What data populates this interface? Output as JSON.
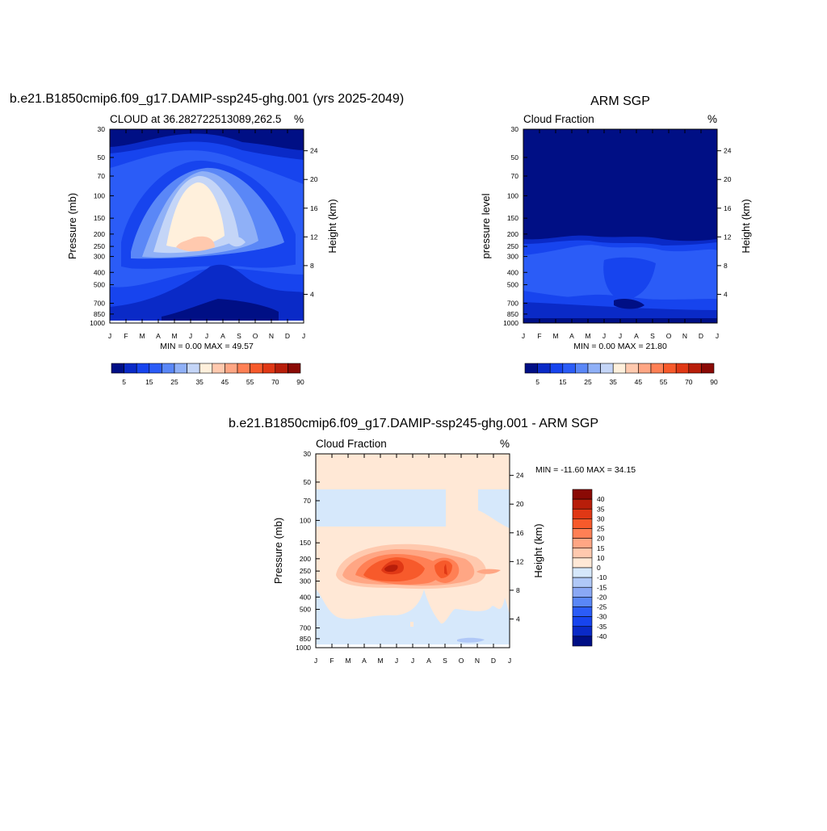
{
  "colors": {
    "frame": "#000000",
    "panel_top_background": "#000f85",
    "diff_background": "#ffe8d6"
  },
  "chart_data": [
    {
      "type": "heatmap",
      "title": "b.e21.B1850cmip6.f09_g17.DAMIP-ssp245-ghg.001 (yrs 2025-2049)",
      "left_string": "CLOUD at 36.282722513089,262.5",
      "right_string": "%",
      "ylabel": "Pressure (mb)",
      "ylabel_right": "Height (km)",
      "x_ticks": [
        "J",
        "F",
        "M",
        "A",
        "M",
        "J",
        "J",
        "A",
        "S",
        "O",
        "N",
        "D",
        "J"
      ],
      "y_ticks": [
        30,
        50,
        70,
        100,
        150,
        200,
        250,
        300,
        400,
        500,
        700,
        850,
        1000
      ],
      "y_right_ticks": [
        24,
        20,
        16,
        12,
        8,
        4
      ],
      "y_scale": "log",
      "ylim": [
        30,
        1000
      ],
      "stats": "MIN =   0.00 MAX =  49.57",
      "colorbar_labels": [
        "5",
        "15",
        "25",
        "35",
        "45",
        "55",
        "70",
        "90"
      ],
      "colorbar_colors": [
        "#000f85",
        "#0a2ac7",
        "#1744ee",
        "#2b5cf7",
        "#5a87f7",
        "#8fb0f7",
        "#c4d5f7",
        "#fff0dc",
        "#ffc9ae",
        "#ffa684",
        "#ff8055",
        "#f75a2b",
        "#e03815",
        "#b81e0a",
        "#8a0a05"
      ],
      "colorbar_placement": "bottom"
    },
    {
      "type": "heatmap",
      "title": "ARM SGP",
      "left_string": "Cloud Fraction",
      "right_string": "%",
      "ylabel": "pressure level",
      "ylabel_right": "Height (km)",
      "x_ticks": [
        "J",
        "F",
        "M",
        "A",
        "M",
        "J",
        "J",
        "A",
        "S",
        "O",
        "N",
        "D",
        "J"
      ],
      "y_ticks": [
        30,
        50,
        70,
        100,
        150,
        200,
        250,
        300,
        400,
        500,
        700,
        850,
        1000
      ],
      "y_right_ticks": [
        24,
        20,
        16,
        12,
        8,
        4
      ],
      "y_scale": "log",
      "ylim": [
        30,
        1000
      ],
      "stats": "MIN =   0.00 MAX =  21.80",
      "colorbar_labels": [
        "5",
        "15",
        "25",
        "35",
        "45",
        "55",
        "70",
        "90"
      ],
      "colorbar_colors": [
        "#000f85",
        "#0a2ac7",
        "#1744ee",
        "#2b5cf7",
        "#5a87f7",
        "#8fb0f7",
        "#c4d5f7",
        "#fff0dc",
        "#ffc9ae",
        "#ffa684",
        "#ff8055",
        "#f75a2b",
        "#e03815",
        "#b81e0a",
        "#8a0a05"
      ],
      "colorbar_placement": "bottom"
    },
    {
      "type": "heatmap",
      "title": "b.e21.B1850cmip6.f09_g17.DAMIP-ssp245-ghg.001 - ARM SGP",
      "left_string": "Cloud Fraction",
      "right_string": "%",
      "ylabel": "Pressure (mb)",
      "ylabel_right": "Height (km)",
      "x_ticks": [
        "J",
        "F",
        "M",
        "A",
        "M",
        "J",
        "J",
        "A",
        "S",
        "O",
        "N",
        "D",
        "J"
      ],
      "y_ticks": [
        30,
        50,
        70,
        100,
        150,
        200,
        250,
        300,
        400,
        500,
        700,
        850,
        1000
      ],
      "y_right_ticks": [
        24,
        20,
        16,
        12,
        8,
        4
      ],
      "y_scale": "log",
      "ylim": [
        30,
        1000
      ],
      "stats": "MIN = -11.60 MAX =  34.15",
      "colorbar_labels": [
        "40",
        "35",
        "30",
        "25",
        "20",
        "15",
        "10",
        "0",
        "-10",
        "-15",
        "-20",
        "-25",
        "-30",
        "-35",
        "-40"
      ],
      "colorbar_colors": [
        "#8a0a05",
        "#b81e0a",
        "#e03815",
        "#f75a2b",
        "#ff8055",
        "#ffa684",
        "#ffc9ae",
        "#ffe8d6",
        "#d6e8fb",
        "#b0c8f7",
        "#8aa8f5",
        "#5a87f7",
        "#2b5cf7",
        "#1744ee",
        "#0a2ac7",
        "#000f85"
      ],
      "colorbar_placement": "right"
    }
  ]
}
